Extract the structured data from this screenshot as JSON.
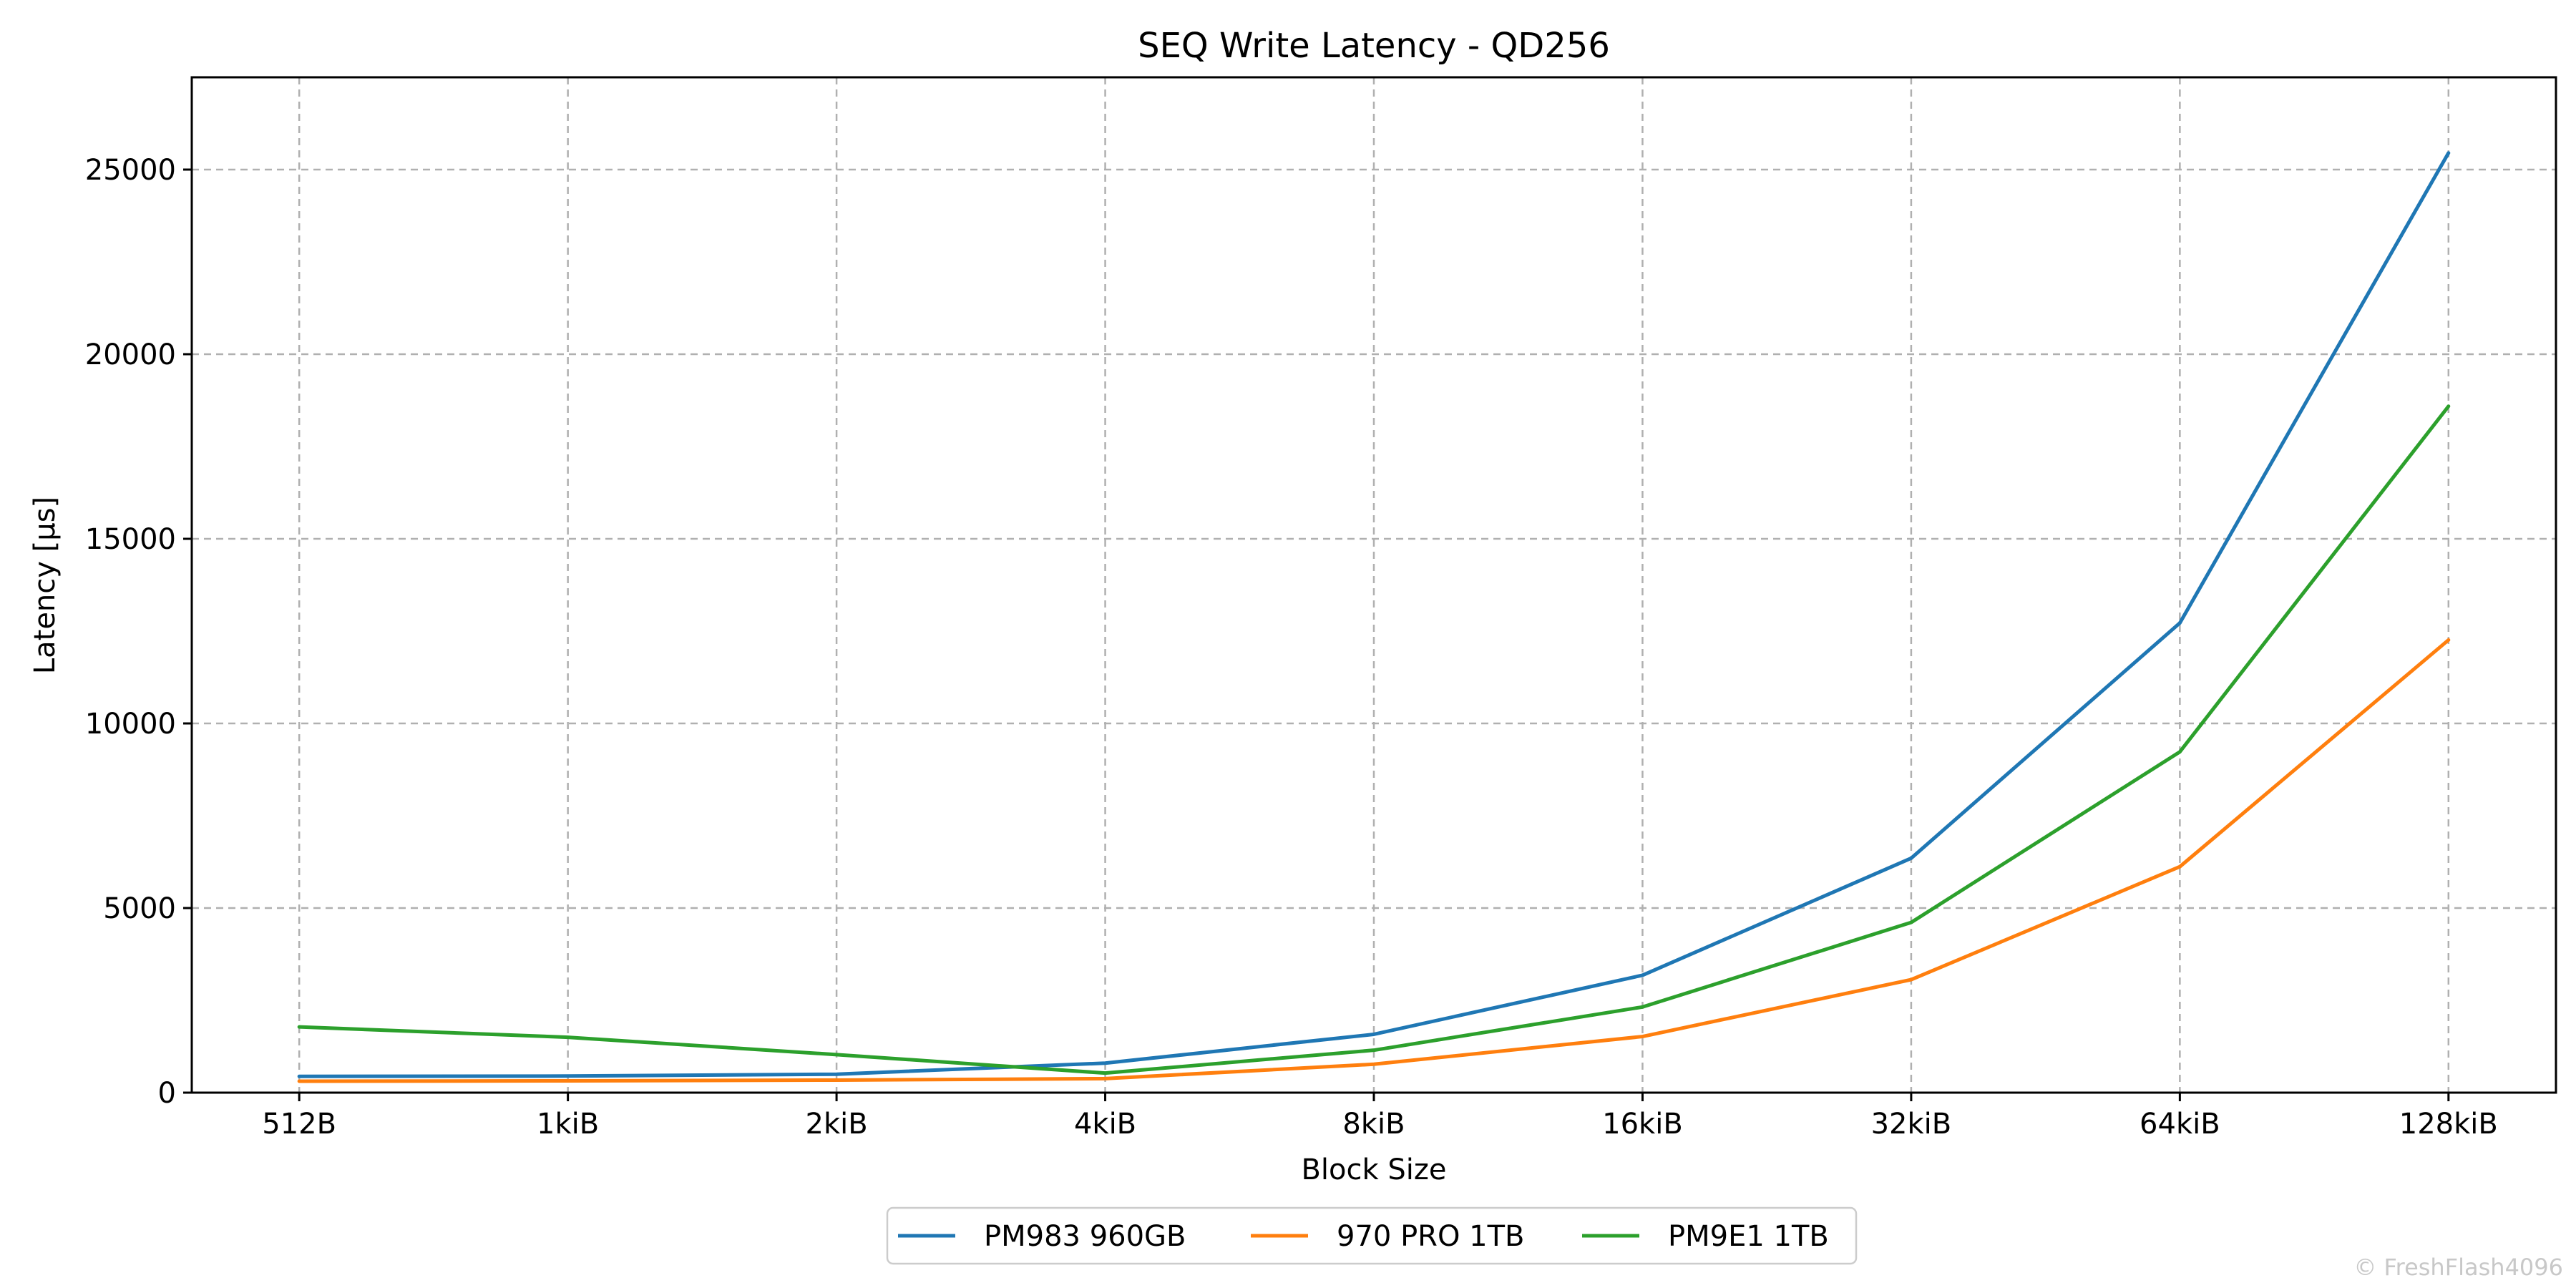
{
  "chart_data": {
    "type": "line",
    "title": "SEQ Write Latency - QD256",
    "xlabel": "Block Size",
    "ylabel": "Latency [µs]",
    "categories": [
      "512B",
      "1kiB",
      "2kiB",
      "4kiB",
      "8kiB",
      "16kiB",
      "32kiB",
      "64kiB",
      "128kiB"
    ],
    "ylim": [
      0,
      27500
    ],
    "yticks": [
      0,
      5000,
      10000,
      15000,
      20000,
      25000
    ],
    "grid": true,
    "legend_position": "bottom-center",
    "series": [
      {
        "name": "PM983 960GB",
        "color": "#1f77b4",
        "values": [
          440,
          450,
          500,
          800,
          1580,
          3180,
          6350,
          12720,
          25450
        ]
      },
      {
        "name": "970 PRO 1TB",
        "color": "#ff7f0e",
        "values": [
          310,
          320,
          340,
          380,
          770,
          1520,
          3060,
          6120,
          12260
        ]
      },
      {
        "name": "PM9E1 1TB",
        "color": "#2ca02c",
        "values": [
          1780,
          1500,
          1030,
          530,
          1150,
          2320,
          4610,
          9230,
          18590
        ]
      }
    ]
  },
  "watermark": "© FreshFlash4096"
}
